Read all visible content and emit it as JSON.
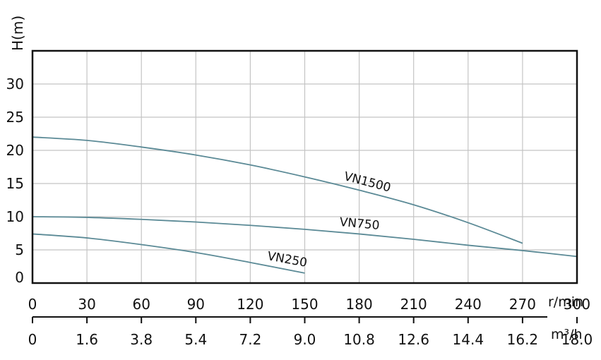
{
  "chart_data": {
    "type": "line",
    "ylabel": "H(m)",
    "ylim": [
      0,
      35
    ],
    "yticks": [
      "0",
      "5",
      "10",
      "15",
      "20",
      "25",
      "30"
    ],
    "xlim": [
      0,
      300
    ],
    "x_unit_top": "r/min",
    "x_ticks_top": [
      "0",
      "30",
      "60",
      "90",
      "120",
      "150",
      "180",
      "210",
      "240",
      "270",
      "300"
    ],
    "x_unit_bottom": "m³/h",
    "x_ticks_bottom": [
      "0",
      "1.6",
      "3.8",
      "5.4",
      "7.2",
      "9.0",
      "10.8",
      "12.6",
      "14.4",
      "16.2",
      "18.0"
    ],
    "grid": true,
    "line_color": "#5b8a96",
    "series": [
      {
        "name": "VN1500",
        "x": [
          0,
          30,
          60,
          90,
          120,
          150,
          180,
          210,
          240,
          270
        ],
        "values": [
          22.0,
          21.5,
          20.5,
          19.3,
          17.8,
          16.0,
          14.0,
          11.8,
          9.1,
          6.0
        ]
      },
      {
        "name": "VN750",
        "x": [
          0,
          30,
          60,
          90,
          120,
          150,
          180,
          210,
          240,
          270,
          300
        ],
        "values": [
          10.0,
          9.9,
          9.6,
          9.2,
          8.7,
          8.1,
          7.4,
          6.6,
          5.7,
          4.9,
          4.0
        ]
      },
      {
        "name": "VN250",
        "x": [
          0,
          30,
          60,
          90,
          120,
          150
        ],
        "values": [
          7.4,
          6.8,
          5.8,
          4.6,
          3.1,
          1.5
        ]
      }
    ]
  }
}
